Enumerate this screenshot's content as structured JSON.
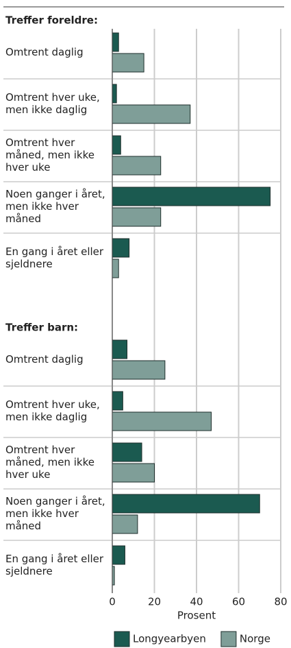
{
  "chart_data": {
    "type": "bar",
    "orientation": "horizontal",
    "xlabel": "Prosent",
    "xlim": [
      0,
      80
    ],
    "xticks": [
      0,
      20,
      40,
      60,
      80
    ],
    "grid": true,
    "legend": "bottom",
    "panels": [
      {
        "title": "Treffer foreldre:",
        "categories": [
          "Omtrent daglig",
          "Omtrent hver uke, men ikke daglig",
          "Omtrent hver måned, men ikke hver uke",
          "Noen ganger i året, men ikke hver måned",
          "En gang i året eller sjeldnere"
        ]
      },
      {
        "title": "Treffer barn:",
        "categories": [
          "Omtrent daglig",
          "Omtrent hver uke, men ikke daglig",
          "Omtrent hver måned, men ikke hver uke",
          "Noen ganger i året, men ikke hver måned",
          "En gang i året eller sjeldnere"
        ]
      }
    ],
    "series": [
      {
        "name": "Longyearbyen",
        "color": "#1b5a50",
        "values": [
          [
            3,
            2,
            4,
            75,
            8
          ],
          [
            7,
            5,
            14,
            70,
            6
          ]
        ]
      },
      {
        "name": "Norge",
        "color": "#7f9e98",
        "values": [
          [
            15,
            37,
            23,
            23,
            3
          ],
          [
            25,
            47,
            20,
            12,
            1
          ]
        ]
      }
    ]
  }
}
